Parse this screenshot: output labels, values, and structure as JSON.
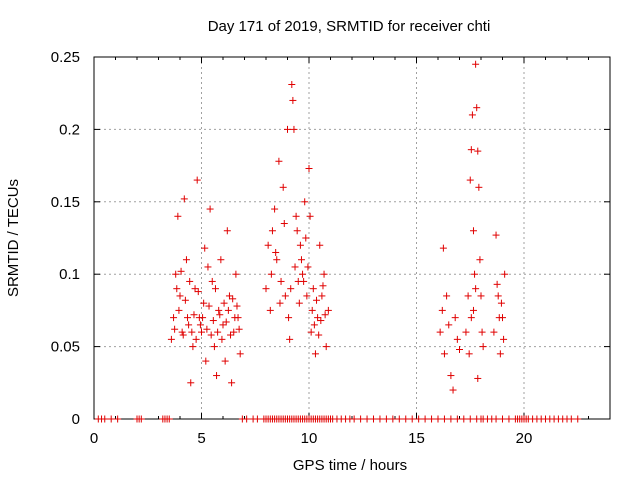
{
  "chart_data": {
    "type": "scatter",
    "title": "Day 171 of 2019, SRMTID for receiver chti",
    "xlabel": "GPS time / hours",
    "ylabel": "SRMTID / TECUs",
    "xlim": [
      0,
      24
    ],
    "ylim": [
      0,
      0.25
    ],
    "xticks": [
      0,
      5,
      10,
      15,
      20
    ],
    "xtick_labels": [
      "0",
      "5",
      "10",
      "15",
      "20"
    ],
    "yticks": [
      0,
      0.05,
      0.1,
      0.15,
      0.2,
      0.25
    ],
    "ytick_labels": [
      "0",
      "0.05",
      "0.1",
      "0.15",
      "0.2",
      "0.25"
    ],
    "grid": true,
    "marker": "+",
    "color": "#e00000",
    "series": [
      {
        "name": "SRMTID",
        "points": [
          [
            0.2,
            0
          ],
          [
            0.35,
            0
          ],
          [
            0.5,
            0
          ],
          [
            0.8,
            0
          ],
          [
            1.1,
            0
          ],
          [
            2.0,
            0
          ],
          [
            2.1,
            0
          ],
          [
            2.2,
            0
          ],
          [
            3.2,
            0
          ],
          [
            3.3,
            0
          ],
          [
            3.4,
            0
          ],
          [
            3.5,
            0
          ],
          [
            6.9,
            0
          ],
          [
            7.1,
            0
          ],
          [
            7.4,
            0
          ],
          [
            7.6,
            0
          ],
          [
            7.9,
            0
          ],
          [
            8.0,
            0
          ],
          [
            8.1,
            0
          ],
          [
            8.2,
            0
          ],
          [
            8.3,
            0
          ],
          [
            8.4,
            0
          ],
          [
            8.5,
            0
          ],
          [
            8.6,
            0
          ],
          [
            8.7,
            0
          ],
          [
            8.8,
            0
          ],
          [
            8.9,
            0
          ],
          [
            9.0,
            0
          ],
          [
            9.1,
            0
          ],
          [
            9.2,
            0
          ],
          [
            9.3,
            0
          ],
          [
            9.4,
            0
          ],
          [
            9.5,
            0
          ],
          [
            9.6,
            0
          ],
          [
            9.7,
            0
          ],
          [
            9.8,
            0
          ],
          [
            9.9,
            0
          ],
          [
            10.0,
            0
          ],
          [
            10.1,
            0
          ],
          [
            10.2,
            0
          ],
          [
            10.3,
            0
          ],
          [
            10.4,
            0
          ],
          [
            10.5,
            0
          ],
          [
            10.6,
            0
          ],
          [
            10.7,
            0
          ],
          [
            10.8,
            0
          ],
          [
            10.9,
            0
          ],
          [
            11.0,
            0
          ],
          [
            11.1,
            0
          ],
          [
            11.3,
            0
          ],
          [
            11.5,
            0
          ],
          [
            11.7,
            0
          ],
          [
            11.9,
            0
          ],
          [
            12.1,
            0
          ],
          [
            12.4,
            0
          ],
          [
            12.7,
            0
          ],
          [
            13.0,
            0
          ],
          [
            13.3,
            0
          ],
          [
            13.6,
            0
          ],
          [
            13.9,
            0
          ],
          [
            14.2,
            0
          ],
          [
            14.5,
            0
          ],
          [
            14.8,
            0
          ],
          [
            15.1,
            0
          ],
          [
            15.4,
            0
          ],
          [
            15.7,
            0
          ],
          [
            16.0,
            0
          ],
          [
            16.3,
            0
          ],
          [
            16.6,
            0
          ],
          [
            16.9,
            0
          ],
          [
            17.2,
            0
          ],
          [
            17.5,
            0
          ],
          [
            17.8,
            0
          ],
          [
            18.0,
            0
          ],
          [
            18.1,
            0
          ],
          [
            18.3,
            0
          ],
          [
            18.5,
            0
          ],
          [
            18.7,
            0
          ],
          [
            19.0,
            0
          ],
          [
            19.3,
            0
          ],
          [
            19.6,
            0
          ],
          [
            19.7,
            0
          ],
          [
            19.8,
            0
          ],
          [
            19.9,
            0
          ],
          [
            20.0,
            0
          ],
          [
            20.1,
            0
          ],
          [
            20.2,
            0
          ],
          [
            20.4,
            0
          ],
          [
            20.6,
            0
          ],
          [
            20.8,
            0
          ],
          [
            21.0,
            0
          ],
          [
            21.2,
            0
          ],
          [
            21.4,
            0
          ],
          [
            21.6,
            0
          ],
          [
            21.8,
            0
          ],
          [
            22.0,
            0
          ],
          [
            22.2,
            0
          ],
          [
            22.5,
            0
          ],
          [
            3.6,
            0.055
          ],
          [
            3.7,
            0.07
          ],
          [
            3.8,
            0.1
          ],
          [
            3.9,
            0.14
          ],
          [
            4.0,
            0.085
          ],
          [
            4.1,
            0.06
          ],
          [
            4.2,
            0.152
          ],
          [
            4.3,
            0.11
          ],
          [
            4.4,
            0.065
          ],
          [
            4.5,
            0.025
          ],
          [
            4.6,
            0.05
          ],
          [
            4.7,
            0.09
          ],
          [
            4.8,
            0.165
          ],
          [
            4.9,
            0.07
          ],
          [
            5.0,
            0.06
          ],
          [
            5.1,
            0.08
          ],
          [
            5.2,
            0.04
          ],
          [
            5.3,
            0.105
          ],
          [
            5.4,
            0.145
          ],
          [
            5.5,
            0.095
          ],
          [
            5.6,
            0.05
          ],
          [
            5.7,
            0.03
          ],
          [
            5.8,
            0.075
          ],
          [
            5.9,
            0.11
          ],
          [
            6.0,
            0.065
          ],
          [
            6.1,
            0.04
          ],
          [
            6.2,
            0.13
          ],
          [
            6.3,
            0.085
          ],
          [
            6.4,
            0.025
          ],
          [
            6.5,
            0.06
          ],
          [
            6.6,
            0.1
          ],
          [
            6.7,
            0.07
          ],
          [
            6.8,
            0.045
          ],
          [
            3.75,
            0.062
          ],
          [
            3.85,
            0.09
          ],
          [
            3.95,
            0.075
          ],
          [
            4.05,
            0.102
          ],
          [
            4.15,
            0.058
          ],
          [
            4.25,
            0.082
          ],
          [
            4.35,
            0.07
          ],
          [
            4.45,
            0.095
          ],
          [
            4.55,
            0.06
          ],
          [
            4.65,
            0.072
          ],
          [
            4.75,
            0.055
          ],
          [
            4.85,
            0.088
          ],
          [
            4.95,
            0.065
          ],
          [
            5.05,
            0.07
          ],
          [
            5.15,
            0.118
          ],
          [
            5.25,
            0.062
          ],
          [
            5.35,
            0.078
          ],
          [
            5.45,
            0.058
          ],
          [
            5.55,
            0.068
          ],
          [
            5.65,
            0.09
          ],
          [
            5.75,
            0.06
          ],
          [
            5.85,
            0.072
          ],
          [
            5.95,
            0.055
          ],
          [
            6.05,
            0.08
          ],
          [
            6.15,
            0.067
          ],
          [
            6.25,
            0.075
          ],
          [
            6.35,
            0.058
          ],
          [
            6.45,
            0.083
          ],
          [
            6.55,
            0.07
          ],
          [
            6.65,
            0.078
          ],
          [
            6.75,
            0.062
          ],
          [
            8.0,
            0.09
          ],
          [
            8.1,
            0.12
          ],
          [
            8.2,
            0.075
          ],
          [
            8.3,
            0.13
          ],
          [
            8.4,
            0.145
          ],
          [
            8.5,
            0.11
          ],
          [
            8.6,
            0.178
          ],
          [
            8.7,
            0.095
          ],
          [
            8.8,
            0.16
          ],
          [
            8.9,
            0.085
          ],
          [
            9.0,
            0.2
          ],
          [
            9.1,
            0.055
          ],
          [
            9.2,
            0.231
          ],
          [
            9.25,
            0.22
          ],
          [
            9.3,
            0.2
          ],
          [
            9.4,
            0.14
          ],
          [
            9.5,
            0.095
          ],
          [
            9.6,
            0.12
          ],
          [
            9.7,
            0.1
          ],
          [
            9.8,
            0.15
          ],
          [
            9.9,
            0.085
          ],
          [
            10.0,
            0.173
          ],
          [
            10.1,
            0.06
          ],
          [
            10.2,
            0.09
          ],
          [
            10.3,
            0.045
          ],
          [
            10.4,
            0.07
          ],
          [
            10.5,
            0.12
          ],
          [
            10.6,
            0.085
          ],
          [
            10.7,
            0.1
          ],
          [
            10.8,
            0.05
          ],
          [
            10.9,
            0.075
          ],
          [
            8.25,
            0.1
          ],
          [
            8.45,
            0.115
          ],
          [
            8.65,
            0.08
          ],
          [
            8.85,
            0.135
          ],
          [
            9.05,
            0.07
          ],
          [
            9.15,
            0.09
          ],
          [
            9.35,
            0.105
          ],
          [
            9.45,
            0.13
          ],
          [
            9.55,
            0.08
          ],
          [
            9.65,
            0.11
          ],
          [
            9.75,
            0.095
          ],
          [
            9.85,
            0.125
          ],
          [
            9.95,
            0.105
          ],
          [
            10.05,
            0.14
          ],
          [
            10.15,
            0.075
          ],
          [
            10.25,
            0.065
          ],
          [
            10.35,
            0.082
          ],
          [
            10.45,
            0.058
          ],
          [
            10.55,
            0.068
          ],
          [
            10.65,
            0.092
          ],
          [
            10.75,
            0.072
          ],
          [
            16.1,
            0.06
          ],
          [
            16.2,
            0.075
          ],
          [
            16.25,
            0.118
          ],
          [
            16.3,
            0.045
          ],
          [
            16.4,
            0.085
          ],
          [
            16.5,
            0.065
          ],
          [
            16.6,
            0.03
          ],
          [
            16.7,
            0.02
          ],
          [
            16.8,
            0.07
          ],
          [
            16.9,
            0.055
          ],
          [
            17.0,
            0.048
          ],
          [
            17.3,
            0.06
          ],
          [
            17.4,
            0.085
          ],
          [
            17.5,
            0.165
          ],
          [
            17.55,
            0.186
          ],
          [
            17.6,
            0.21
          ],
          [
            17.65,
            0.13
          ],
          [
            17.7,
            0.1
          ],
          [
            17.75,
            0.245
          ],
          [
            17.8,
            0.215
          ],
          [
            17.85,
            0.185
          ],
          [
            17.9,
            0.16
          ],
          [
            17.95,
            0.11
          ],
          [
            18.0,
            0.085
          ],
          [
            18.05,
            0.06
          ],
          [
            18.1,
            0.05
          ],
          [
            17.85,
            0.028
          ],
          [
            17.45,
            0.045
          ],
          [
            17.55,
            0.07
          ],
          [
            17.65,
            0.075
          ],
          [
            17.75,
            0.09
          ],
          [
            18.6,
            0.06
          ],
          [
            18.7,
            0.127
          ],
          [
            18.8,
            0.085
          ],
          [
            18.9,
            0.045
          ],
          [
            19.0,
            0.07
          ],
          [
            19.1,
            0.1
          ],
          [
            19.05,
            0.055
          ],
          [
            18.85,
            0.07
          ],
          [
            18.95,
            0.08
          ],
          [
            18.75,
            0.093
          ]
        ]
      }
    ]
  }
}
